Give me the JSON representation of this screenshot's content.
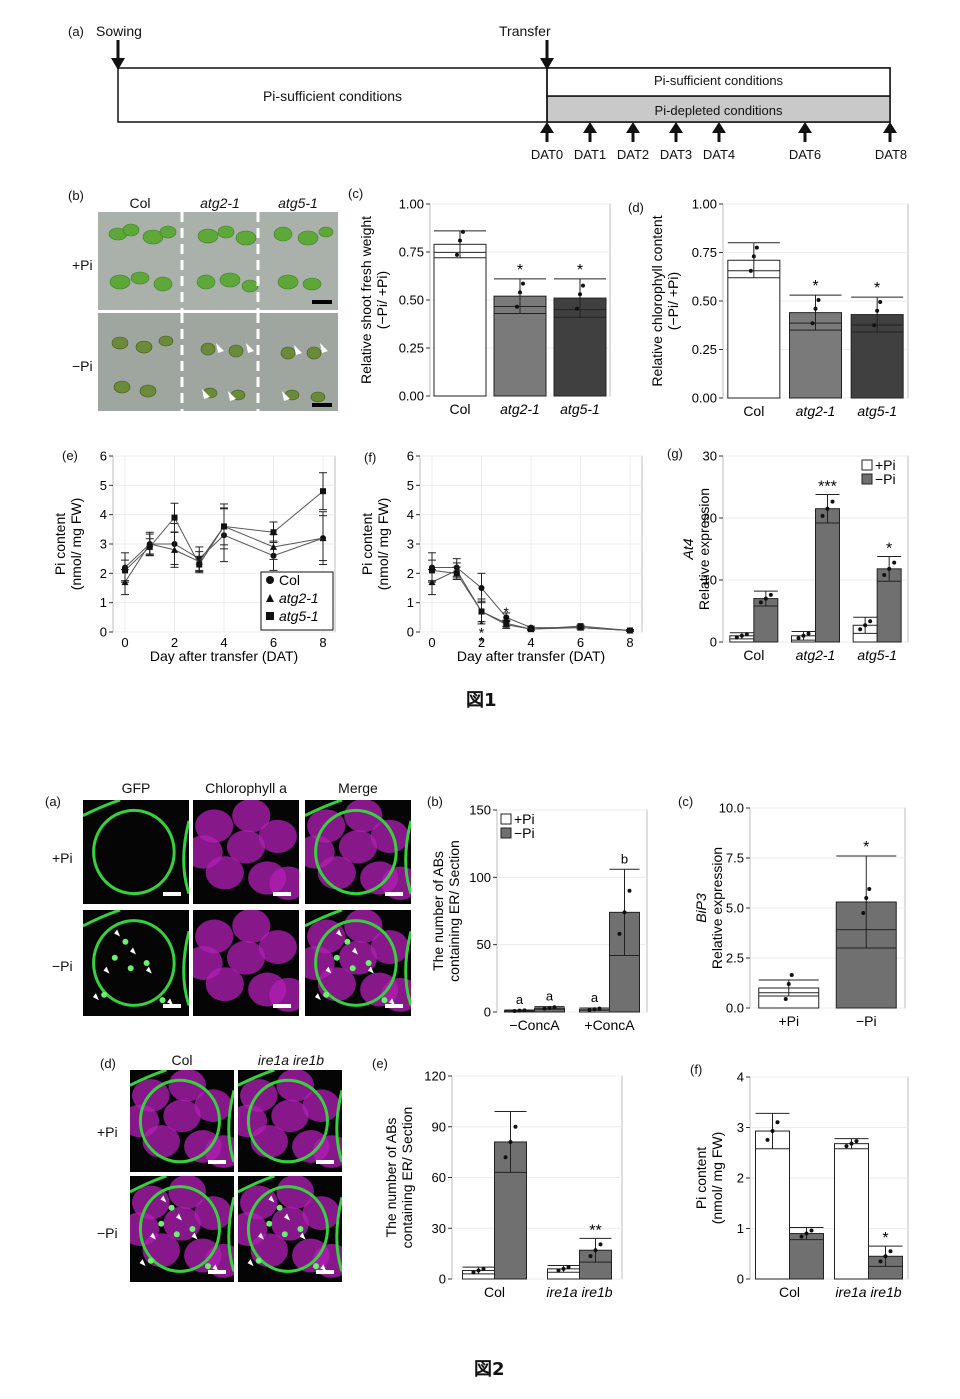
{
  "figure1": {
    "caption": "図1",
    "timeline": {
      "panel": "(a)",
      "sowing": "Sowing",
      "transfer": "Transfer",
      "pre": "Pi-sufficient conditions",
      "post_sufficient": "Pi-sufficient conditions",
      "post_depleted": "Pi-depleted conditions",
      "days": [
        "DAT0",
        "DAT1",
        "DAT2",
        "DAT3",
        "DAT4",
        "DAT6",
        "DAT8"
      ]
    },
    "photo_b": {
      "panel": "(b)",
      "cols": [
        "Col",
        "atg2-1",
        "atg5-1"
      ],
      "rows": [
        "+Pi",
        "−Pi"
      ]
    }
  },
  "figure2": {
    "caption": "図2",
    "micro_a": {
      "panel": "(a)",
      "cols": [
        "GFP",
        "Chlorophyll a",
        "Merge"
      ],
      "rows": [
        "+Pi",
        "−Pi"
      ]
    },
    "micro_d": {
      "panel": "(d)",
      "cols": [
        "Col",
        "ire1a ire1b"
      ],
      "rows": [
        "+Pi",
        "−Pi"
      ]
    }
  },
  "chart_data": [
    {
      "id": "fig1c",
      "panel": "(c)",
      "type": "bar",
      "categories": [
        "Col",
        "atg2-1",
        "atg5-1"
      ],
      "values": [
        0.79,
        0.52,
        0.51
      ],
      "errors": [
        0.07,
        0.09,
        0.1
      ],
      "significance": [
        "",
        "*",
        "*"
      ],
      "ylabel": [
        "Relative shoot fresh weight",
        "(−Pi/ +Pi)"
      ],
      "ylim": [
        0,
        1.0
      ],
      "yticks": [
        "0.00",
        "0.25",
        "0.50",
        "0.75",
        "1.00"
      ],
      "colors": [
        "#ffffff",
        "#7a7a7a",
        "#404040"
      ]
    },
    {
      "id": "fig1d",
      "panel": "(d)",
      "type": "bar",
      "categories": [
        "Col",
        "atg2-1",
        "atg5-1"
      ],
      "values": [
        0.71,
        0.44,
        0.43
      ],
      "errors": [
        0.09,
        0.09,
        0.09
      ],
      "significance": [
        "",
        "*",
        "*"
      ],
      "ylabel": [
        "Relative chlorophyll content",
        "(−Pi/ +Pi)"
      ],
      "ylim": [
        0,
        1.0
      ],
      "yticks": [
        "0.00",
        "0.25",
        "0.50",
        "0.75",
        "1.00"
      ],
      "colors": [
        "#ffffff",
        "#7a7a7a",
        "#404040"
      ]
    },
    {
      "id": "fig1e",
      "panel": "(e)",
      "type": "line",
      "x": [
        0,
        1,
        2,
        3,
        4,
        6,
        8
      ],
      "series": [
        {
          "name": "Col",
          "marker": "circle",
          "values": [
            2.2,
            3.0,
            3.0,
            2.5,
            3.3,
            2.6,
            3.2
          ]
        },
        {
          "name": "atg2-1",
          "marker": "triangle",
          "values": [
            1.7,
            3.0,
            2.8,
            2.4,
            3.6,
            2.9,
            3.2
          ]
        },
        {
          "name": "atg5-1",
          "marker": "square",
          "values": [
            2.1,
            2.9,
            3.9,
            2.3,
            3.6,
            3.4,
            4.8
          ]
        }
      ],
      "errors": [
        0.5,
        0.4,
        0.7,
        0.4,
        0.9,
        0.5,
        0.9
      ],
      "xlabel": "Day after transfer (DAT)",
      "ylabel": [
        "Pi content",
        "(nmol/ mg FW)"
      ],
      "xlim": [
        0,
        8
      ],
      "ylim": [
        0,
        6
      ],
      "xticks": [
        0,
        2,
        4,
        6,
        8
      ],
      "yticks": [
        0,
        1,
        2,
        3,
        4,
        5,
        6
      ],
      "legend": "bottom-right"
    },
    {
      "id": "fig1f",
      "panel": "(f)",
      "type": "line",
      "x": [
        0,
        1,
        2,
        3,
        4,
        6,
        8
      ],
      "series": [
        {
          "name": "Col",
          "marker": "circle",
          "values": [
            2.2,
            2.2,
            1.5,
            0.5,
            0.15,
            0.15,
            0.05
          ]
        },
        {
          "name": "atg2-1",
          "marker": "triangle",
          "values": [
            1.7,
            2.1,
            0.7,
            0.25,
            0.1,
            0.15,
            0.05
          ]
        },
        {
          "name": "atg5-1",
          "marker": "square",
          "values": [
            2.1,
            2.0,
            0.7,
            0.3,
            0.1,
            0.2,
            0.05
          ]
        }
      ],
      "errors": [
        0.5,
        0.3,
        0.5,
        0.15,
        0.05,
        0.05,
        0.03
      ],
      "significance": [
        {
          "x": 2,
          "text": "*",
          "y": 0.45
        },
        {
          "x": 2,
          "text": "*",
          "y": 0.15
        },
        {
          "x": 2,
          "text": "*",
          "y": -0.15
        },
        {
          "x": 3,
          "text": "*",
          "y": 0.85
        },
        {
          "x": 3,
          "text": "*",
          "y": 0.55
        }
      ],
      "xlabel": "Day after transfer (DAT)",
      "ylabel": [
        "Pi content",
        "(nmol/ mg FW)"
      ],
      "xlim": [
        0,
        8
      ],
      "ylim": [
        0,
        6
      ],
      "xticks": [
        0,
        2,
        4,
        6,
        8
      ],
      "yticks": [
        0,
        1,
        2,
        3,
        4,
        5,
        6
      ]
    },
    {
      "id": "fig1g",
      "panel": "(g)",
      "type": "bar",
      "categories": [
        "Col",
        "atg2-1",
        "atg5-1"
      ],
      "series": [
        {
          "name": "+Pi",
          "values": [
            1.0,
            1.0,
            2.7
          ],
          "errors": [
            0.5,
            0.7,
            1.3
          ]
        },
        {
          "name": "−Pi",
          "values": [
            7.0,
            21.5,
            11.8
          ],
          "errors": [
            1.2,
            2.3,
            2.0
          ]
        }
      ],
      "significance": [
        "",
        "***",
        "*"
      ],
      "ylabel": [
        "At4",
        "Relative expression"
      ],
      "ylim": [
        0,
        30
      ],
      "yticks": [
        0,
        10,
        20,
        30
      ],
      "legend": "top-right",
      "colors": [
        "#ffffff",
        "#707070"
      ]
    },
    {
      "id": "fig2b",
      "panel": "(b)",
      "type": "bar",
      "categories": [
        "−ConcA",
        "+ConcA"
      ],
      "series": [
        {
          "name": "+Pi",
          "values": [
            1,
            2
          ],
          "errors": [
            0.5,
            1
          ]
        },
        {
          "name": "−Pi",
          "values": [
            3,
            74
          ],
          "errors": [
            1,
            32
          ]
        }
      ],
      "group_letters": [
        "a",
        "a",
        "a",
        "b"
      ],
      "ylabel": [
        "The number of ABs",
        "containing ER/ Section"
      ],
      "ylim": [
        0,
        150
      ],
      "yticks": [
        0,
        50,
        100,
        150
      ],
      "legend": "top-left",
      "colors": [
        "#ffffff",
        "#707070"
      ]
    },
    {
      "id": "fig2c",
      "panel": "(c)",
      "type": "bar",
      "categories": [
        "+Pi",
        "−Pi"
      ],
      "values": [
        1.0,
        5.3
      ],
      "errors": [
        0.4,
        2.3
      ],
      "significance": [
        "",
        "*"
      ],
      "ylabel": [
        "BiP3",
        "Relative expression"
      ],
      "ylim": [
        0,
        10
      ],
      "yticks": [
        "0.0",
        "2.5",
        "5.0",
        "7.5",
        "10.0"
      ],
      "colors": [
        "#ffffff",
        "#707070"
      ]
    },
    {
      "id": "fig2e",
      "panel": "(e)",
      "type": "bar",
      "categories": [
        "Col",
        "ire1a ire1b"
      ],
      "series": [
        {
          "name": "+Pi",
          "values": [
            5,
            6
          ],
          "errors": [
            2,
            2
          ]
        },
        {
          "name": "−Pi",
          "values": [
            81,
            17
          ],
          "errors": [
            18,
            7
          ]
        }
      ],
      "significance": [
        "",
        "**"
      ],
      "ylabel": [
        "The number of ABs",
        "containing ER/ Section"
      ],
      "ylim": [
        0,
        120
      ],
      "yticks": [
        0,
        30,
        60,
        90,
        120
      ],
      "colors": [
        "#ffffff",
        "#707070"
      ]
    },
    {
      "id": "fig2f",
      "panel": "(f)",
      "type": "bar",
      "categories": [
        "Col",
        "ire1a ire1b"
      ],
      "series": [
        {
          "name": "+Pi",
          "values": [
            2.93,
            2.68
          ],
          "errors": [
            0.35,
            0.1
          ]
        },
        {
          "name": "−Pi",
          "values": [
            0.9,
            0.45
          ],
          "errors": [
            0.12,
            0.2
          ]
        }
      ],
      "significance": [
        "",
        "*"
      ],
      "ylabel": [
        "Pi content",
        "(nmol/ mg FW)"
      ],
      "ylim": [
        0,
        4
      ],
      "yticks": [
        0,
        1,
        2,
        3,
        4
      ],
      "colors": [
        "#ffffff",
        "#707070"
      ]
    }
  ]
}
